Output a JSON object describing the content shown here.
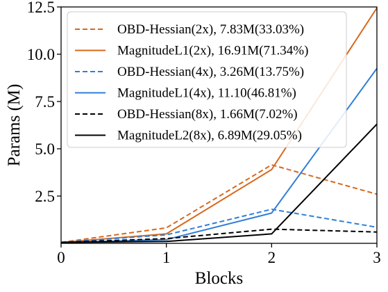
{
  "chart_data": {
    "type": "line",
    "title": "",
    "xlabel": "Blocks",
    "ylabel": "Params (M)",
    "xlim": [
      0,
      3
    ],
    "ylim": [
      0,
      12.5
    ],
    "xticks": [
      0,
      1,
      2,
      3
    ],
    "xtick_labels": [
      "0",
      "1",
      "2",
      "3"
    ],
    "yticks": [
      2.5,
      5.0,
      7.5,
      10.0,
      12.5
    ],
    "ytick_labels": [
      "2.5",
      "5.0",
      "7.5",
      "10.0",
      "12.5"
    ],
    "grid": false,
    "legend_position": "upper-left",
    "x": [
      0,
      1,
      2,
      3
    ],
    "series": [
      {
        "name": "OBD-Hessian(2x), 7.83M(33.03%)",
        "values": [
          0.05,
          0.82,
          4.15,
          2.6
        ],
        "color": "#d8681c",
        "dash": "dashed"
      },
      {
        "name": "MagnitudeL1(2x), 16.91M(71.34%)",
        "values": [
          0.05,
          0.5,
          3.9,
          12.45
        ],
        "color": "#d8681c",
        "dash": "solid"
      },
      {
        "name": "OBD-Hessian(4x), 3.26M(13.75%)",
        "values": [
          0.05,
          0.45,
          1.8,
          0.85
        ],
        "color": "#2f7ed8",
        "dash": "dashed"
      },
      {
        "name": "MagnitudeL1(4x), 11.10(46.81%)",
        "values": [
          0.05,
          0.2,
          1.6,
          9.25
        ],
        "color": "#2f7ed8",
        "dash": "solid"
      },
      {
        "name": "OBD-Hessian(8x), 1.66M(7.02%)",
        "values": [
          0.05,
          0.25,
          0.75,
          0.6
        ],
        "color": "#000000",
        "dash": "dashed"
      },
      {
        "name": "MagnitudeL2(8x), 6.89M(29.05%)",
        "values": [
          0.05,
          0.1,
          0.5,
          6.3
        ],
        "color": "#000000",
        "dash": "solid"
      }
    ]
  }
}
